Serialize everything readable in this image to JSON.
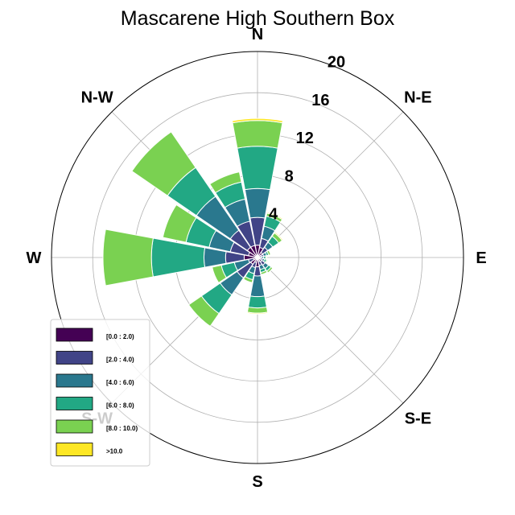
{
  "chart_data": {
    "type": "windrose",
    "title": "Mascarene High Southern Box",
    "direction_labels": [
      "N",
      "N-E",
      "E",
      "S-E",
      "S",
      "S-W",
      "W",
      "N-W"
    ],
    "radial_ticks": [
      4,
      8,
      12,
      16,
      20
    ],
    "radial_tick_labels": [
      "4",
      "8",
      "12",
      "16",
      "20"
    ],
    "rmax": 20,
    "grid": true,
    "legend_position": "lower-left",
    "bins": [
      {
        "label": "[0.0 : 2.0)",
        "color": "#440154"
      },
      {
        "label": "[2.0 : 4.0)",
        "color": "#414487"
      },
      {
        "label": "[4.0 : 6.0)",
        "color": "#2a788e"
      },
      {
        "label": "[6.0 : 8.0)",
        "color": "#22a884"
      },
      {
        "label": "[8.0 : 10.0)",
        "color": "#7ad151"
      },
      {
        "label": ">10.0",
        "color": "#fde725"
      }
    ],
    "sectors": [
      {
        "dir_deg": 0,
        "cumulative": [
          1.2,
          3.9,
          6.7,
          10.8,
          13.3,
          13.5
        ]
      },
      {
        "dir_deg": 22.5,
        "cumulative": [
          1.0,
          1.9,
          3.1,
          4.1,
          4.4,
          4.5
        ]
      },
      {
        "dir_deg": 45,
        "cumulative": [
          0.6,
          1.2,
          1.8,
          2.5,
          2.9,
          3.0
        ]
      },
      {
        "dir_deg": 67.5,
        "cumulative": [
          0.4,
          0.6,
          0.9,
          1.1,
          1.3,
          1.3
        ]
      },
      {
        "dir_deg": 90,
        "cumulative": [
          0.2,
          0.4,
          0.6,
          0.8,
          0.9,
          0.9
        ]
      },
      {
        "dir_deg": 112.5,
        "cumulative": [
          0.3,
          0.5,
          0.7,
          0.9,
          1.0,
          1.0
        ]
      },
      {
        "dir_deg": 135,
        "cumulative": [
          0.5,
          0.9,
          1.3,
          1.6,
          1.8,
          1.8
        ]
      },
      {
        "dir_deg": 157.5,
        "cumulative": [
          0.4,
          0.8,
          1.2,
          1.5,
          1.7,
          1.7
        ]
      },
      {
        "dir_deg": 180,
        "cumulative": [
          0.9,
          1.8,
          3.8,
          4.9,
          5.4,
          5.5
        ]
      },
      {
        "dir_deg": 202.5,
        "cumulative": [
          0.5,
          1.0,
          1.6,
          2.2,
          2.5,
          2.5
        ]
      },
      {
        "dir_deg": 225,
        "cumulative": [
          0.8,
          2.4,
          4.4,
          6.6,
          8.1,
          8.1
        ]
      },
      {
        "dir_deg": 247.5,
        "cumulative": [
          0.4,
          0.9,
          2.3,
          3.6,
          4.5,
          4.5
        ]
      },
      {
        "dir_deg": 270,
        "cumulative": [
          1.3,
          3.1,
          5.2,
          10.3,
          15.0,
          15.0
        ]
      },
      {
        "dir_deg": 292.5,
        "cumulative": [
          0.9,
          2.7,
          4.8,
          7.1,
          9.4,
          9.4
        ]
      },
      {
        "dir_deg": 315,
        "cumulative": [
          1.2,
          3.2,
          7.2,
          10.6,
          14.8,
          14.8
        ]
      },
      {
        "dir_deg": 337.5,
        "cumulative": [
          1.2,
          3.6,
          5.8,
          7.5,
          8.5,
          8.5
        ]
      }
    ]
  },
  "styles": {
    "background": "#ffffff",
    "grid_color": "#b0b0b0",
    "frame_color": "#000000"
  }
}
